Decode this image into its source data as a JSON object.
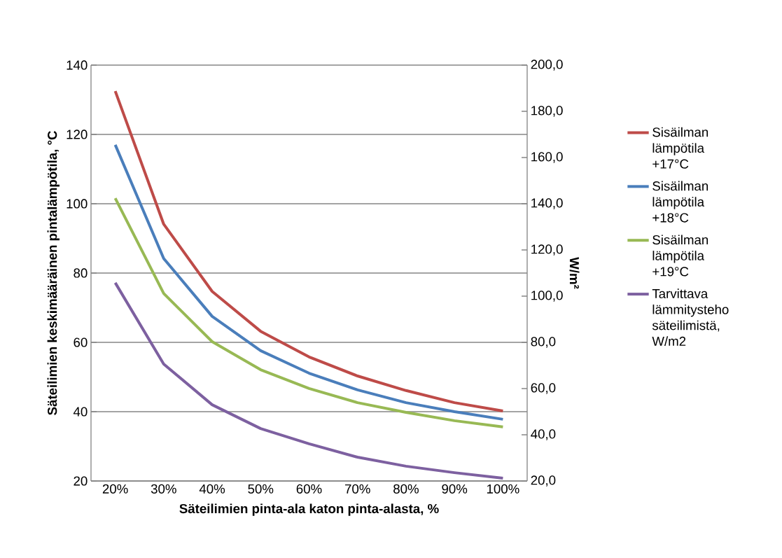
{
  "chart_data": {
    "type": "line",
    "xlabel": "Säteilimien pinta-ala katon pinta-alasta, %",
    "ylabel": "Säteilimien keskimääräinen pintalämpötila, °C",
    "y2label": "W/m²",
    "categories": [
      "20%",
      "30%",
      "40%",
      "50%",
      "60%",
      "70%",
      "80%",
      "90%",
      "100%"
    ],
    "series": [
      {
        "name": "Sisäilman lämpötila +17°C",
        "color": "#be4b48",
        "values": [
          132.5,
          94.1,
          74.7,
          63.2,
          55.8,
          50.3,
          46.1,
          42.6,
          40.2
        ]
      },
      {
        "name": "Sisäilman lämpötila +18°C",
        "color": "#4a7ebb",
        "values": [
          117,
          84.2,
          67.5,
          57.6,
          51.1,
          46.3,
          42.6,
          40,
          37.8
        ]
      },
      {
        "name": "Sisäilman lämpötila +19°C",
        "color": "#98b954",
        "values": [
          101.6,
          74.1,
          60.2,
          52.1,
          46.7,
          42.6,
          39.8,
          37.4,
          35.6
        ]
      },
      {
        "name": "Tarvittava lämmitysteho säteilimistä, W/m2",
        "color": "#7d60a0",
        "axis": "y2",
        "values": [
          105.8,
          70.6,
          53,
          42.7,
          36.1,
          30.3,
          26.4,
          23.6,
          21.2
        ]
      }
    ],
    "ylim": [
      20,
      140
    ],
    "yticks": [
      20,
      40,
      60,
      80,
      100,
      120,
      140
    ],
    "y2lim": [
      20,
      200
    ],
    "y2ticks": [
      {
        "value": 20,
        "label": "20,0"
      },
      {
        "value": 40,
        "label": "40,0"
      },
      {
        "value": 60,
        "label": "60,0"
      },
      {
        "value": 80,
        "label": "80,0"
      },
      {
        "value": 100,
        "label": "100,0"
      },
      {
        "value": 120,
        "label": "120,0"
      },
      {
        "value": 140,
        "label": "140,0"
      },
      {
        "value": 160,
        "label": "160,0"
      },
      {
        "value": 180,
        "label": "180,0"
      },
      {
        "value": 200,
        "label": "200,0"
      }
    ],
    "grid": "y",
    "legend": "right",
    "marker": "none",
    "line_style": "solid"
  }
}
